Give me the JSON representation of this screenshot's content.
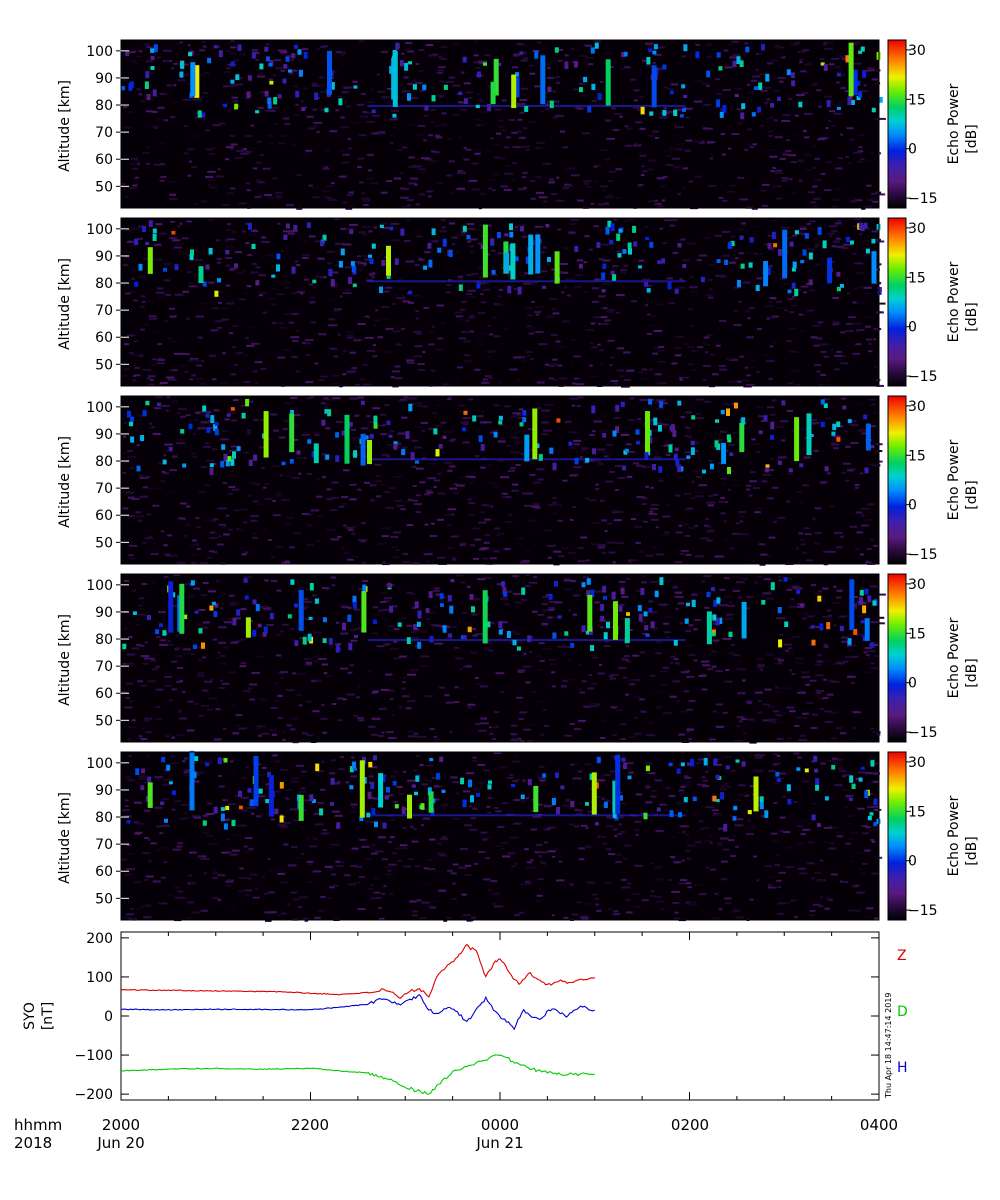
{
  "chart_data": [
    {
      "type": "heatmap",
      "panel": 1,
      "ylabel": "Altitude [km]",
      "yticks": [
        50,
        60,
        70,
        80,
        90,
        100
      ],
      "ylim": [
        42,
        104
      ],
      "xlim_hours": [
        20,
        28
      ],
      "colorbar": {
        "label_line1": "Echo Power",
        "label_line2": "[dB]",
        "ticks": [
          30,
          15,
          0,
          -15
        ],
        "range": [
          -18,
          33
        ]
      },
      "echo_line_altitude_km": 80,
      "seed": 11
    },
    {
      "type": "heatmap",
      "panel": 2,
      "ylabel": "Altitude [km]",
      "yticks": [
        50,
        60,
        70,
        80,
        90,
        100
      ],
      "ylim": [
        42,
        104
      ],
      "xlim_hours": [
        20,
        28
      ],
      "colorbar": {
        "label_line1": "Echo Power",
        "label_line2": "[dB]",
        "ticks": [
          30,
          15,
          0,
          -15
        ],
        "range": [
          -18,
          33
        ]
      },
      "echo_line_altitude_km": 81,
      "seed": 23
    },
    {
      "type": "heatmap",
      "panel": 3,
      "ylabel": "Altitude [km]",
      "yticks": [
        50,
        60,
        70,
        80,
        90,
        100
      ],
      "ylim": [
        42,
        104
      ],
      "xlim_hours": [
        20,
        28
      ],
      "colorbar": {
        "label_line1": "Echo Power",
        "label_line2": "[dB]",
        "ticks": [
          30,
          15,
          0,
          -15
        ],
        "range": [
          -18,
          33
        ]
      },
      "echo_line_altitude_km": 81,
      "seed": 37
    },
    {
      "type": "heatmap",
      "panel": 4,
      "ylabel": "Altitude [km]",
      "yticks": [
        50,
        60,
        70,
        80,
        90,
        100
      ],
      "ylim": [
        42,
        104
      ],
      "xlim_hours": [
        20,
        28
      ],
      "colorbar": {
        "label_line1": "Echo Power",
        "label_line2": "[dB]",
        "ticks": [
          30,
          15,
          0,
          -15
        ],
        "range": [
          -18,
          33
        ]
      },
      "echo_line_altitude_km": 80,
      "seed": 53
    },
    {
      "type": "heatmap",
      "panel": 5,
      "ylabel": "Altitude [km]",
      "yticks": [
        50,
        60,
        70,
        80,
        90,
        100
      ],
      "ylim": [
        42,
        104
      ],
      "xlim_hours": [
        20,
        28
      ],
      "colorbar": {
        "label_line1": "Echo Power",
        "label_line2": "[dB]",
        "ticks": [
          30,
          15,
          0,
          -15
        ],
        "range": [
          -18,
          33
        ]
      },
      "echo_line_altitude_km": 81,
      "seed": 71
    },
    {
      "type": "line",
      "panel": 6,
      "ylabel_line1": "SYO",
      "ylabel_line2": "[nT]",
      "yticks": [
        200,
        100,
        0,
        -100,
        -200
      ],
      "ylim": [
        -215,
        215
      ],
      "xlim_hours": [
        20,
        28
      ],
      "series": [
        {
          "name": "Z",
          "color": "#dd0000",
          "points": [
            [
              20.0,
              67
            ],
            [
              20.5,
              66
            ],
            [
              21.0,
              64
            ],
            [
              21.5,
              63
            ],
            [
              21.8,
              61
            ],
            [
              22.0,
              58
            ],
            [
              22.3,
              55
            ],
            [
              22.6,
              60
            ],
            [
              22.75,
              66
            ],
            [
              22.85,
              60
            ],
            [
              22.95,
              45
            ],
            [
              23.05,
              65
            ],
            [
              23.15,
              70
            ],
            [
              23.25,
              50
            ],
            [
              23.35,
              110
            ],
            [
              23.45,
              130
            ],
            [
              23.55,
              150
            ],
            [
              23.65,
              180
            ],
            [
              23.75,
              165
            ],
            [
              23.85,
              100
            ],
            [
              23.95,
              140
            ],
            [
              24.0,
              148
            ],
            [
              24.1,
              110
            ],
            [
              24.2,
              80
            ],
            [
              24.3,
              110
            ],
            [
              24.4,
              95
            ],
            [
              24.5,
              80
            ],
            [
              24.62,
              90
            ],
            [
              24.75,
              85
            ],
            [
              24.9,
              95
            ],
            [
              25.0,
              98
            ]
          ]
        },
        {
          "name": "D",
          "color": "#00cc00",
          "points": [
            [
              20.0,
              -140
            ],
            [
              20.5,
              -136
            ],
            [
              21.0,
              -134
            ],
            [
              21.5,
              -136
            ],
            [
              22.0,
              -134
            ],
            [
              22.3,
              -140
            ],
            [
              22.55,
              -145
            ],
            [
              22.75,
              -155
            ],
            [
              22.95,
              -175
            ],
            [
              23.1,
              -190
            ],
            [
              23.25,
              -200
            ],
            [
              23.35,
              -175
            ],
            [
              23.5,
              -145
            ],
            [
              23.65,
              -128
            ],
            [
              23.8,
              -118
            ],
            [
              23.95,
              -100
            ],
            [
              24.05,
              -105
            ],
            [
              24.2,
              -125
            ],
            [
              24.4,
              -140
            ],
            [
              24.6,
              -148
            ],
            [
              24.8,
              -150
            ],
            [
              25.0,
              -148
            ]
          ]
        },
        {
          "name": "H",
          "color": "#0000cc",
          "points": [
            [
              20.0,
              17
            ],
            [
              20.5,
              16
            ],
            [
              21.0,
              17
            ],
            [
              21.5,
              17
            ],
            [
              22.0,
              16
            ],
            [
              22.3,
              22
            ],
            [
              22.6,
              30
            ],
            [
              22.75,
              45
            ],
            [
              22.85,
              35
            ],
            [
              22.95,
              30
            ],
            [
              23.05,
              40
            ],
            [
              23.15,
              55
            ],
            [
              23.25,
              15
            ],
            [
              23.35,
              5
            ],
            [
              23.45,
              25
            ],
            [
              23.55,
              10
            ],
            [
              23.65,
              -15
            ],
            [
              23.75,
              15
            ],
            [
              23.85,
              45
            ],
            [
              23.95,
              10
            ],
            [
              24.05,
              -10
            ],
            [
              24.15,
              -30
            ],
            [
              24.25,
              15
            ],
            [
              24.4,
              -10
            ],
            [
              24.55,
              20
            ],
            [
              24.7,
              0
            ],
            [
              24.85,
              25
            ],
            [
              25.0,
              15
            ]
          ]
        }
      ]
    }
  ],
  "legend_labels": [
    {
      "text": "Z",
      "color": "#dd0000"
    },
    {
      "text": "D",
      "color": "#00cc00"
    },
    {
      "text": "H",
      "color": "#0000cc"
    }
  ],
  "footer": {
    "row1_label": "hhmm",
    "row2_label": "2018",
    "time_ticks": [
      "2000",
      "2200",
      "0000",
      "0200",
      "0400"
    ],
    "date_labels": [
      "Jun 20",
      "Jun 21"
    ]
  },
  "stamp": "Thu Apr 18 14:47:14 2019"
}
